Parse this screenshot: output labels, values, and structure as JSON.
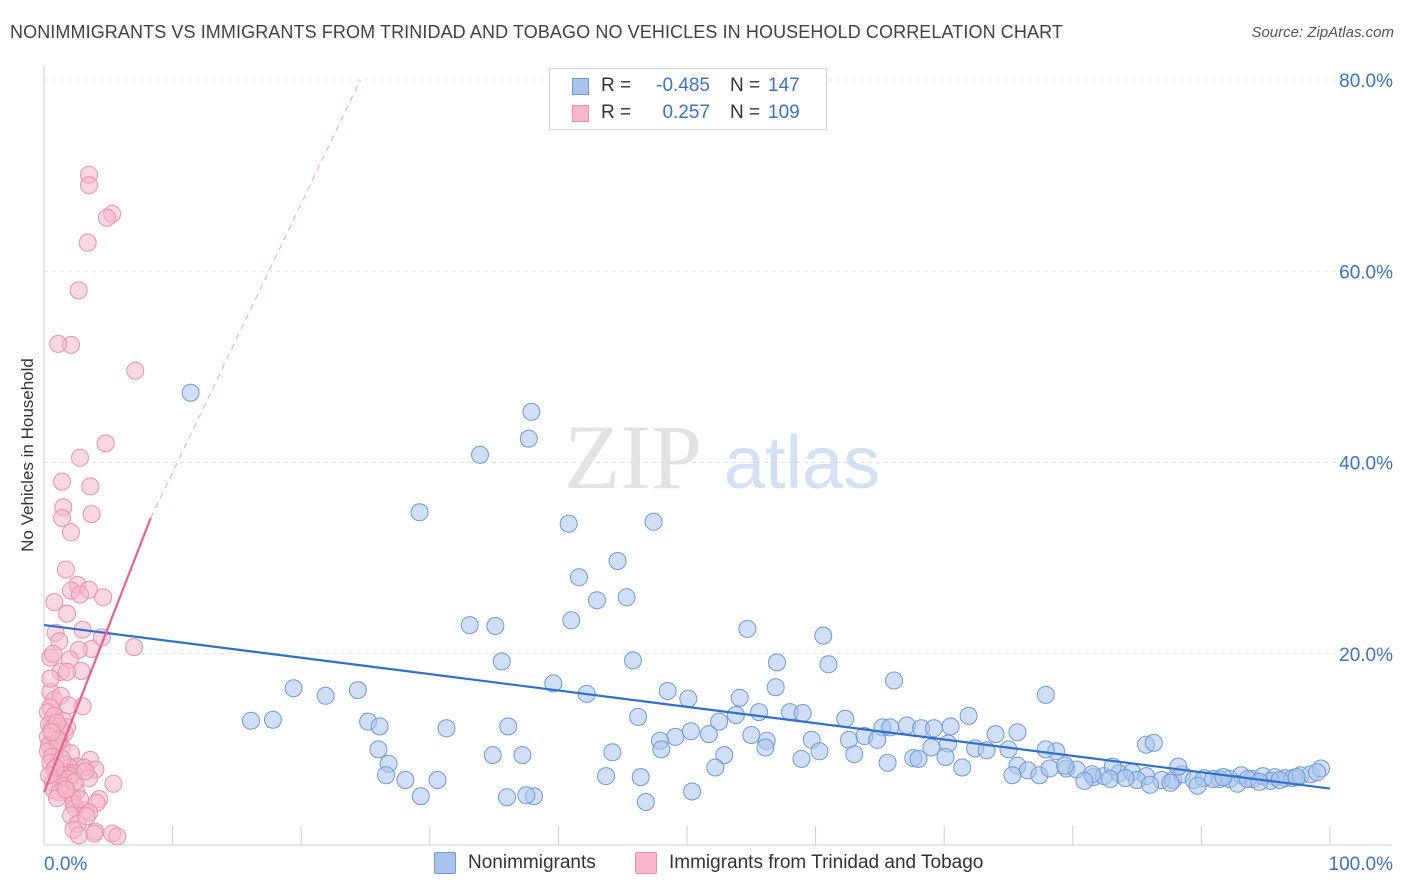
{
  "title": "NONIMMIGRANTS VS IMMIGRANTS FROM TRINIDAD AND TOBAGO NO VEHICLES IN HOUSEHOLD CORRELATION CHART",
  "source": "Source: ZipAtlas.com",
  "watermark": {
    "zip": "ZIP",
    "atlas": "atlas"
  },
  "legend": {
    "r_label": "R =",
    "n_label": "N =",
    "rows": [
      {
        "r": "-0.485",
        "n": "147"
      },
      {
        "r": "0.257",
        "n": "109"
      }
    ]
  },
  "bottom_legend": [
    "Nonimmigrants",
    "Immigrants from Trinidad and Tobago"
  ],
  "colors": {
    "blue_fill": "#a9c4ec",
    "blue_stroke": "#6f9ad8",
    "blue_line": "#2f6fd0",
    "pink_fill": "#f6b8c9",
    "pink_stroke": "#ec8fab",
    "pink_line": "#e8628f",
    "axis_text": "#3b72c8",
    "grid": "#e2e2e2"
  },
  "chart_data": {
    "type": "scatter",
    "title": "NONIMMIGRANTS VS IMMIGRANTS FROM TRINIDAD AND TOBAGO NO VEHICLES IN HOUSEHOLD CORRELATION CHART",
    "xlabel": "",
    "ylabel": "No Vehicles in Household",
    "xlim": [
      0,
      100
    ],
    "ylim": [
      0,
      82
    ],
    "x_tick_labels": [
      "0.0%",
      "100.0%"
    ],
    "y_ticks": [
      20,
      40,
      60,
      80
    ],
    "y_tick_labels": [
      "20.0%",
      "40.0%",
      "60.0%",
      "80.0%"
    ],
    "grid": true,
    "legend_position": "top-center",
    "series": [
      {
        "name": "Nonimmigrants",
        "r": -0.485,
        "n": 147,
        "trend": {
          "x": [
            0,
            100
          ],
          "y": [
            23.0,
            5.9
          ]
        },
        "points": [
          [
            11.4,
            47.3
          ],
          [
            37.9,
            45.3
          ],
          [
            37.7,
            42.5
          ],
          [
            33.9,
            40.8
          ],
          [
            29.2,
            34.8
          ],
          [
            40.8,
            33.6
          ],
          [
            47.4,
            33.8
          ],
          [
            44.6,
            29.7
          ],
          [
            41.6,
            28.0
          ],
          [
            43.0,
            25.6
          ],
          [
            45.3,
            25.9
          ],
          [
            33.1,
            23.0
          ],
          [
            35.1,
            22.9
          ],
          [
            41.0,
            23.5
          ],
          [
            54.7,
            22.6
          ],
          [
            60.6,
            21.9
          ],
          [
            35.6,
            19.2
          ],
          [
            45.8,
            19.3
          ],
          [
            57.0,
            19.1
          ],
          [
            61.0,
            18.9
          ],
          [
            39.6,
            16.9
          ],
          [
            19.4,
            16.4
          ],
          [
            21.9,
            15.6
          ],
          [
            24.4,
            16.2
          ],
          [
            42.2,
            15.8
          ],
          [
            48.5,
            16.1
          ],
          [
            50.1,
            15.3
          ],
          [
            56.9,
            16.5
          ],
          [
            66.1,
            17.2
          ],
          [
            77.9,
            15.7
          ],
          [
            25.2,
            12.9
          ],
          [
            26.1,
            12.4
          ],
          [
            31.3,
            12.2
          ],
          [
            36.1,
            12.4
          ],
          [
            46.2,
            13.4
          ],
          [
            52.5,
            12.9
          ],
          [
            53.8,
            13.6
          ],
          [
            54.1,
            15.4
          ],
          [
            55.6,
            13.9
          ],
          [
            58.0,
            13.9
          ],
          [
            59.0,
            13.8
          ],
          [
            62.3,
            13.2
          ],
          [
            65.2,
            12.3
          ],
          [
            65.8,
            12.3
          ],
          [
            67.1,
            12.5
          ],
          [
            68.2,
            12.2
          ],
          [
            69.2,
            12.2
          ],
          [
            70.5,
            12.4
          ],
          [
            71.9,
            13.5
          ],
          [
            74.0,
            11.6
          ],
          [
            75.7,
            11.8
          ],
          [
            16.1,
            13.0
          ],
          [
            17.8,
            13.1
          ],
          [
            49.1,
            11.3
          ],
          [
            51.7,
            11.6
          ],
          [
            56.2,
            10.9
          ],
          [
            59.7,
            11.0
          ],
          [
            62.6,
            11.0
          ],
          [
            63.8,
            11.4
          ],
          [
            64.8,
            11.0
          ],
          [
            69.0,
            10.2
          ],
          [
            70.3,
            10.6
          ],
          [
            72.4,
            10.1
          ],
          [
            73.3,
            9.9
          ],
          [
            75.0,
            10.0
          ],
          [
            78.7,
            9.8
          ],
          [
            85.7,
            10.5
          ],
          [
            26.0,
            10.0
          ],
          [
            26.8,
            8.5
          ],
          [
            34.9,
            9.4
          ],
          [
            37.2,
            9.4
          ],
          [
            44.2,
            9.7
          ],
          [
            47.9,
            10.9
          ],
          [
            50.3,
            11.9
          ],
          [
            52.9,
            9.4
          ],
          [
            56.1,
            10.2
          ],
          [
            60.3,
            9.8
          ],
          [
            63.0,
            9.5
          ],
          [
            65.6,
            8.6
          ],
          [
            67.6,
            9.1
          ],
          [
            70.1,
            9.2
          ],
          [
            71.4,
            8.1
          ],
          [
            75.7,
            8.3
          ],
          [
            76.5,
            7.8
          ],
          [
            77.4,
            7.3
          ],
          [
            78.2,
            8.0
          ],
          [
            79.5,
            8.0
          ],
          [
            80.3,
            7.9
          ],
          [
            81.6,
            7.1
          ],
          [
            82.4,
            7.2
          ],
          [
            83.6,
            7.5
          ],
          [
            84.6,
            7.6
          ],
          [
            85.7,
            7.2
          ],
          [
            86.9,
            6.8
          ],
          [
            87.8,
            6.8
          ],
          [
            88.5,
            7.4
          ],
          [
            89.4,
            6.8
          ],
          [
            90.2,
            7.0
          ],
          [
            91.4,
            6.9
          ],
          [
            92.2,
            6.9
          ],
          [
            93.1,
            7.3
          ],
          [
            94.0,
            6.9
          ],
          [
            94.8,
            7.2
          ],
          [
            95.7,
            7.1
          ],
          [
            96.5,
            7.0
          ],
          [
            97.1,
            7.0
          ],
          [
            97.7,
            7.3
          ],
          [
            98.5,
            7.4
          ],
          [
            99.3,
            8.0
          ],
          [
            81.5,
            7.4
          ],
          [
            83.1,
            8.2
          ],
          [
            86.3,
            10.7
          ],
          [
            87.6,
            6.5
          ],
          [
            88.2,
            8.2
          ],
          [
            90.9,
            6.9
          ],
          [
            92.8,
            6.4
          ],
          [
            95.4,
            6.7
          ],
          [
            96.1,
            6.8
          ],
          [
            80.9,
            6.7
          ],
          [
            85.0,
            6.8
          ],
          [
            89.7,
            6.2
          ],
          [
            93.6,
            6.9
          ],
          [
            26.6,
            7.3
          ],
          [
            28.1,
            6.8
          ],
          [
            30.6,
            6.8
          ],
          [
            29.3,
            5.1
          ],
          [
            36.0,
            5.0
          ],
          [
            38.1,
            5.1
          ],
          [
            37.5,
            5.2
          ],
          [
            43.7,
            7.2
          ],
          [
            46.4,
            7.1
          ],
          [
            50.4,
            5.6
          ],
          [
            46.8,
            4.5
          ],
          [
            52.2,
            8.1
          ],
          [
            55.0,
            11.5
          ],
          [
            58.9,
            9.0
          ],
          [
            48.0,
            10.0
          ],
          [
            75.3,
            7.3
          ],
          [
            77.9,
            10.0
          ],
          [
            79.4,
            8.3
          ],
          [
            82.9,
            6.9
          ],
          [
            84.1,
            7.0
          ],
          [
            86.0,
            6.3
          ],
          [
            91.7,
            7.1
          ],
          [
            94.5,
            6.6
          ],
          [
            97.4,
            7.1
          ],
          [
            99.0,
            7.6
          ],
          [
            68.0,
            9.0
          ]
        ]
      },
      {
        "name": "Immigrants from Trinidad and Tobago",
        "r": 0.257,
        "n": 109,
        "trend": {
          "x": [
            0,
            8.3
          ],
          "y": [
            5.5,
            34.2
          ],
          "x_dashed_end": 24.6,
          "y_dashed_end": 80.0
        },
        "points": [
          [
            3.5,
            70.1
          ],
          [
            3.5,
            69.0
          ],
          [
            5.3,
            66.0
          ],
          [
            4.9,
            65.6
          ],
          [
            3.4,
            63.0
          ],
          [
            2.7,
            58.0
          ],
          [
            2.1,
            52.3
          ],
          [
            1.1,
            52.4
          ],
          [
            7.1,
            49.6
          ],
          [
            4.8,
            42.0
          ],
          [
            2.8,
            40.5
          ],
          [
            1.4,
            38.0
          ],
          [
            3.6,
            37.5
          ],
          [
            1.5,
            35.3
          ],
          [
            3.7,
            34.6
          ],
          [
            1.4,
            34.2
          ],
          [
            2.1,
            32.7
          ],
          [
            1.7,
            28.8
          ],
          [
            2.6,
            27.2
          ],
          [
            3.5,
            26.7
          ],
          [
            2.1,
            26.6
          ],
          [
            0.8,
            25.4
          ],
          [
            2.8,
            26.2
          ],
          [
            4.6,
            25.9
          ],
          [
            1.8,
            24.2
          ],
          [
            0.9,
            22.2
          ],
          [
            3.0,
            22.5
          ],
          [
            1.2,
            21.3
          ],
          [
            4.5,
            21.7
          ],
          [
            7.0,
            20.7
          ],
          [
            3.7,
            20.5
          ],
          [
            2.7,
            20.4
          ],
          [
            0.5,
            19.6
          ],
          [
            0.7,
            20.0
          ],
          [
            2.0,
            19.4
          ],
          [
            1.3,
            18.1
          ],
          [
            2.9,
            18.2
          ],
          [
            1.8,
            18.1
          ],
          [
            0.5,
            16.0
          ],
          [
            0.8,
            15.2
          ],
          [
            1.3,
            15.6
          ],
          [
            0.5,
            14.4
          ],
          [
            3.0,
            14.5
          ],
          [
            0.3,
            13.9
          ],
          [
            0.8,
            13.5
          ],
          [
            1.5,
            13.0
          ],
          [
            0.4,
            12.6
          ],
          [
            1.2,
            12.4
          ],
          [
            0.6,
            12.1
          ],
          [
            1.8,
            12.3
          ],
          [
            1.6,
            11.7
          ],
          [
            0.3,
            11.3
          ],
          [
            1.2,
            11.0
          ],
          [
            0.4,
            10.4
          ],
          [
            1.4,
            10.2
          ],
          [
            0.7,
            10.0
          ],
          [
            0.3,
            9.8
          ],
          [
            2.1,
            9.6
          ],
          [
            0.6,
            9.2
          ],
          [
            3.6,
            8.9
          ],
          [
            0.5,
            8.6
          ],
          [
            1.7,
            8.4
          ],
          [
            2.6,
            8.2
          ],
          [
            2.0,
            8.1
          ],
          [
            3.1,
            8.1
          ],
          [
            0.8,
            7.9
          ],
          [
            4.0,
            7.9
          ],
          [
            1.8,
            7.6
          ],
          [
            2.3,
            7.5
          ],
          [
            1.5,
            7.3
          ],
          [
            2.1,
            7.2
          ],
          [
            3.5,
            7.0
          ],
          [
            1.2,
            6.9
          ],
          [
            1.9,
            6.9
          ],
          [
            0.7,
            6.5
          ],
          [
            5.4,
            6.4
          ],
          [
            1.6,
            6.2
          ],
          [
            0.8,
            5.7
          ],
          [
            2.5,
            5.6
          ],
          [
            1.2,
            5.5
          ],
          [
            2.2,
            5.0
          ],
          [
            1.0,
            4.9
          ],
          [
            4.3,
            4.8
          ],
          [
            4.1,
            4.4
          ],
          [
            2.3,
            4.3
          ],
          [
            2.4,
            3.9
          ],
          [
            3.2,
            3.6
          ],
          [
            3.5,
            3.4
          ],
          [
            2.1,
            3.1
          ],
          [
            2.6,
            2.2
          ],
          [
            2.3,
            1.6
          ],
          [
            4.0,
            1.4
          ],
          [
            3.9,
            1.2
          ],
          [
            5.3,
            1.2
          ],
          [
            2.7,
            1.0
          ],
          [
            5.7,
            0.9
          ],
          [
            0.5,
            17.4
          ],
          [
            1.0,
            12.8
          ],
          [
            1.4,
            9.0
          ],
          [
            2.4,
            6.6
          ],
          [
            0.9,
            8.1
          ],
          [
            1.7,
            5.8
          ],
          [
            3.2,
            7.7
          ],
          [
            2.8,
            4.8
          ],
          [
            0.4,
            7.3
          ],
          [
            1.1,
            10.9
          ],
          [
            1.9,
            14.6
          ],
          [
            0.6,
            11.8
          ],
          [
            3.3,
            3.0
          ]
        ]
      }
    ]
  }
}
